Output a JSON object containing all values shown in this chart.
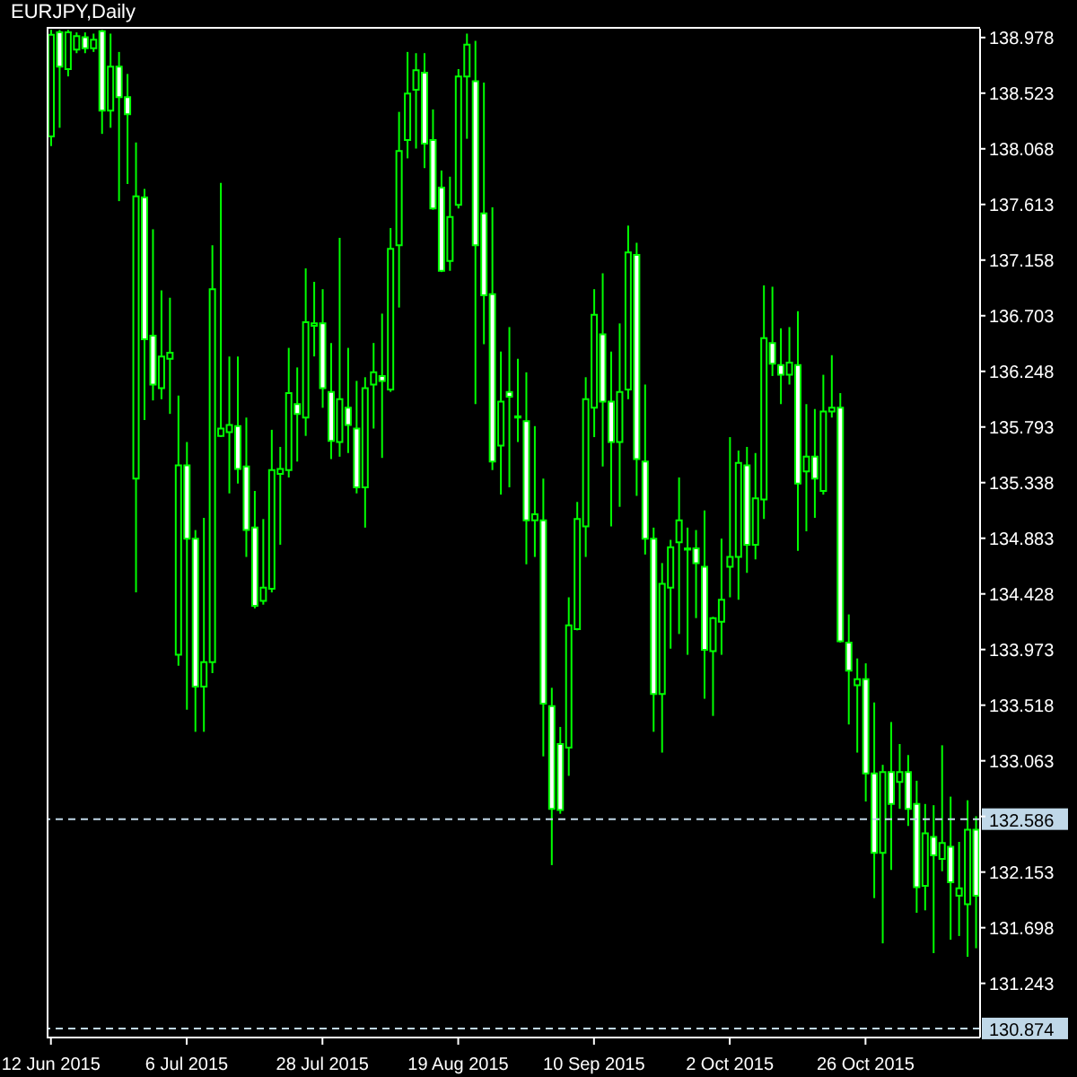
{
  "chart_data": {
    "type": "candlestick",
    "title": "EURJPY,Daily",
    "color": "#00ff00",
    "categories": [
      "12 Jun 2015",
      null,
      null,
      null,
      null,
      null,
      null,
      null,
      null,
      null,
      null,
      null,
      null,
      null,
      null,
      null,
      "6 Jul 2015",
      null,
      null,
      null,
      null,
      null,
      null,
      null,
      null,
      null,
      null,
      null,
      null,
      null,
      null,
      null,
      "28 Jul 2015",
      null,
      null,
      null,
      null,
      null,
      null,
      null,
      null,
      null,
      null,
      null,
      null,
      null,
      null,
      null,
      "19 Aug 2015",
      null,
      null,
      null,
      null,
      null,
      null,
      null,
      null,
      null,
      null,
      null,
      null,
      null,
      null,
      null,
      "10 Sep 2015",
      null,
      null,
      null,
      null,
      null,
      null,
      null,
      null,
      null,
      null,
      null,
      null,
      null,
      null,
      null,
      "2 Oct 2015",
      null,
      null,
      null,
      null,
      null,
      null,
      null,
      null,
      null,
      null,
      null,
      null,
      null,
      null,
      null,
      "26 Oct 2015",
      null,
      null,
      null,
      null,
      null,
      null,
      null,
      null,
      null,
      null,
      null,
      null,
      null
    ],
    "ohlc": [
      [
        138.17,
        139.04,
        138.09,
        139.0
      ],
      [
        139.02,
        139.04,
        138.24,
        138.74
      ],
      [
        138.72,
        139.04,
        138.66,
        139.02
      ],
      [
        138.88,
        139.02,
        138.85,
        138.99
      ],
      [
        138.98,
        139.02,
        138.85,
        138.89
      ],
      [
        138.89,
        139.01,
        138.86,
        138.96
      ],
      [
        139.03,
        139.04,
        138.19,
        138.38
      ],
      [
        138.38,
        139.01,
        138.24,
        138.74
      ],
      [
        138.74,
        138.86,
        137.64,
        138.49
      ],
      [
        138.49,
        138.68,
        137.78,
        138.35
      ],
      [
        135.37,
        138.12,
        134.44,
        137.68
      ],
      [
        137.67,
        137.74,
        135.85,
        136.51
      ],
      [
        136.54,
        137.41,
        136.01,
        136.14
      ],
      [
        136.11,
        136.91,
        136.02,
        136.37
      ],
      [
        136.35,
        136.85,
        135.9,
        136.4
      ],
      [
        133.93,
        136.05,
        133.84,
        135.48
      ],
      [
        135.48,
        135.67,
        133.48,
        134.88
      ],
      [
        134.88,
        134.95,
        133.3,
        133.67
      ],
      [
        133.67,
        135.05,
        133.3,
        133.87
      ],
      [
        133.87,
        137.28,
        133.78,
        136.92
      ],
      [
        135.72,
        137.79,
        135.71,
        135.78
      ],
      [
        135.75,
        136.37,
        135.25,
        135.81
      ],
      [
        135.8,
        136.37,
        135.33,
        135.45
      ],
      [
        135.47,
        135.87,
        134.73,
        134.95
      ],
      [
        134.97,
        135.27,
        134.31,
        134.33
      ],
      [
        134.37,
        135.04,
        134.34,
        134.48
      ],
      [
        134.47,
        135.77,
        134.44,
        135.44
      ],
      [
        135.41,
        135.63,
        134.83,
        135.45
      ],
      [
        135.44,
        136.44,
        135.38,
        136.07
      ],
      [
        135.98,
        136.28,
        135.51,
        135.9
      ],
      [
        135.87,
        137.09,
        135.72,
        136.65
      ],
      [
        136.62,
        136.98,
        136.37,
        136.64
      ],
      [
        136.64,
        136.92,
        135.95,
        136.11
      ],
      [
        136.08,
        136.48,
        135.53,
        135.68
      ],
      [
        135.67,
        137.34,
        135.55,
        136.02
      ],
      [
        135.95,
        136.44,
        135.58,
        135.81
      ],
      [
        135.78,
        136.17,
        135.25,
        135.3
      ],
      [
        135.3,
        136.2,
        134.97,
        136.11
      ],
      [
        136.14,
        136.48,
        135.78,
        136.24
      ],
      [
        136.21,
        136.72,
        135.54,
        136.17
      ],
      [
        136.1,
        137.42,
        136.08,
        137.25
      ],
      [
        137.28,
        138.37,
        136.77,
        138.05
      ],
      [
        138.14,
        138.86,
        137.99,
        138.52
      ],
      [
        138.55,
        138.85,
        138.07,
        138.71
      ],
      [
        138.69,
        138.85,
        137.91,
        138.11
      ],
      [
        138.14,
        138.39,
        137.57,
        137.58
      ],
      [
        137.75,
        137.89,
        137.06,
        137.07
      ],
      [
        137.15,
        137.84,
        137.07,
        137.51
      ],
      [
        137.61,
        138.72,
        137.58,
        138.66
      ],
      [
        138.66,
        139.01,
        138.15,
        138.92
      ],
      [
        138.62,
        138.95,
        135.98,
        137.28
      ],
      [
        137.54,
        138.61,
        136.47,
        136.87
      ],
      [
        136.88,
        137.59,
        135.44,
        135.51
      ],
      [
        135.64,
        136.41,
        135.24,
        136.0
      ],
      [
        136.08,
        136.61,
        135.3,
        136.04
      ],
      [
        135.88,
        136.35,
        135.67,
        135.87
      ],
      [
        135.84,
        136.24,
        134.67,
        135.03
      ],
      [
        135.03,
        135.8,
        134.73,
        135.08
      ],
      [
        135.03,
        135.37,
        133.1,
        133.53
      ],
      [
        133.51,
        133.66,
        132.21,
        132.67
      ],
      [
        133.2,
        133.34,
        132.63,
        132.66
      ],
      [
        133.17,
        134.4,
        132.94,
        134.17
      ],
      [
        134.14,
        135.18,
        134.13,
        135.04
      ],
      [
        134.98,
        136.2,
        134.73,
        136.02
      ],
      [
        135.95,
        136.92,
        135.71,
        136.71
      ],
      [
        136.55,
        137.05,
        135.47,
        136.0
      ],
      [
        136.0,
        136.41,
        134.98,
        135.67
      ],
      [
        135.67,
        136.64,
        135.14,
        136.08
      ],
      [
        136.1,
        137.44,
        136.02,
        137.22
      ],
      [
        137.2,
        137.3,
        135.23,
        135.53
      ],
      [
        135.51,
        136.14,
        134.75,
        134.88
      ],
      [
        134.88,
        134.97,
        133.3,
        133.61
      ],
      [
        133.61,
        134.68,
        133.13,
        134.51
      ],
      [
        134.48,
        134.87,
        133.98,
        134.81
      ],
      [
        134.85,
        135.38,
        134.1,
        135.03
      ],
      [
        134.79,
        134.97,
        133.93,
        134.8
      ],
      [
        134.8,
        134.95,
        134.23,
        134.68
      ],
      [
        134.65,
        135.11,
        133.57,
        133.97
      ],
      [
        133.96,
        134.24,
        133.43,
        134.23
      ],
      [
        134.2,
        134.88,
        133.93,
        134.38
      ],
      [
        134.65,
        135.71,
        134.4,
        134.73
      ],
      [
        134.73,
        135.6,
        134.38,
        135.5
      ],
      [
        135.48,
        135.63,
        134.6,
        134.83
      ],
      [
        134.83,
        135.58,
        134.71,
        135.21
      ],
      [
        135.2,
        136.95,
        135.04,
        136.52
      ],
      [
        136.48,
        136.94,
        136.21,
        136.31
      ],
      [
        136.3,
        136.6,
        135.98,
        136.22
      ],
      [
        136.22,
        136.61,
        136.14,
        136.32
      ],
      [
        136.3,
        136.74,
        134.78,
        135.33
      ],
      [
        135.43,
        135.98,
        134.94,
        135.55
      ],
      [
        135.55,
        135.94,
        135.05,
        135.37
      ],
      [
        135.27,
        136.22,
        135.24,
        135.92
      ],
      [
        135.92,
        136.38,
        135.87,
        135.95
      ],
      [
        135.95,
        136.07,
        134.03,
        134.04
      ],
      [
        134.03,
        134.26,
        133.36,
        133.8
      ],
      [
        133.68,
        133.9,
        133.13,
        133.73
      ],
      [
        133.73,
        133.86,
        132.73,
        132.96
      ],
      [
        132.96,
        133.54,
        131.94,
        132.31
      ],
      [
        132.31,
        133.03,
        131.57,
        132.97
      ],
      [
        132.97,
        133.38,
        132.17,
        132.71
      ],
      [
        132.89,
        133.2,
        132.67,
        132.97
      ],
      [
        132.97,
        133.11,
        132.53,
        132.67
      ],
      [
        132.71,
        132.9,
        131.82,
        132.03
      ],
      [
        132.04,
        132.71,
        131.84,
        132.47
      ],
      [
        132.44,
        132.7,
        131.49,
        132.29
      ],
      [
        132.26,
        133.19,
        132.16,
        132.39
      ],
      [
        132.36,
        132.77,
        131.6,
        132.07
      ],
      [
        131.96,
        132.4,
        131.63,
        132.02
      ],
      [
        131.89,
        132.74,
        131.46,
        132.5
      ],
      [
        132.5,
        132.61,
        131.53,
        131.96
      ]
    ],
    "ylim": [
      130.8,
      139.05
    ],
    "yticks": [
      138.978,
      138.523,
      138.068,
      137.613,
      137.158,
      136.703,
      136.248,
      135.793,
      135.338,
      134.883,
      134.428,
      133.973,
      133.518,
      133.063,
      {
        "value": 132.608,
        "label": null
      },
      132.153,
      131.698,
      131.243
    ],
    "ref_lines": [
      {
        "axis": "y",
        "value": 132.586,
        "label": "132.586",
        "color": "#c0d8e8",
        "line_style": "dashed"
      },
      {
        "axis": "y",
        "value": 130.874,
        "label": "130.874",
        "color": "#c0d8e8",
        "line_style": "dashed"
      }
    ],
    "legend": false
  }
}
